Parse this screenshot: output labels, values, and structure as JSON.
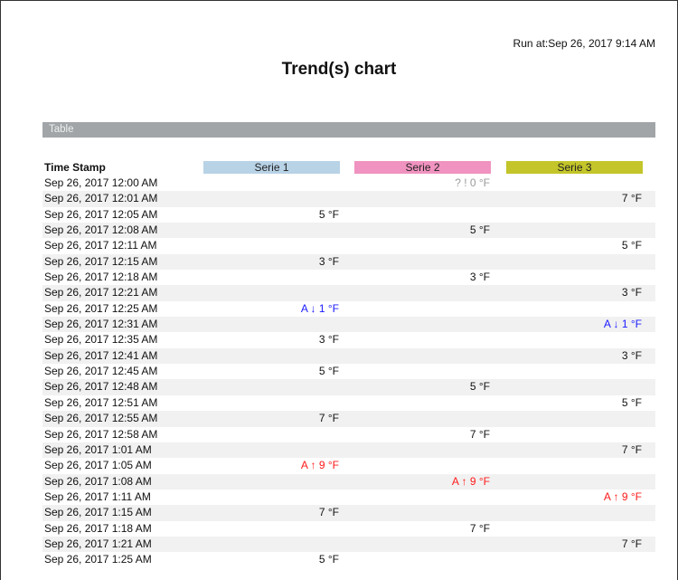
{
  "header": {
    "run_at": "Run at:Sep 26, 2017 9:14 AM",
    "title": "Trend(s) chart"
  },
  "section": {
    "label": "Table"
  },
  "table": {
    "columns": [
      {
        "label": "Time Stamp"
      },
      {
        "label": "Serie 1",
        "color": "#b8d2e6"
      },
      {
        "label": "Serie 2",
        "color": "#f093c0"
      },
      {
        "label": "Serie 3",
        "color": "#c3c52a"
      }
    ],
    "status_colors": {
      "normal": "#111111",
      "unknown": "#9a9a9a",
      "alarm_low": "#1a1aff",
      "alarm_high": "#ff1a1a"
    },
    "rows": [
      {
        "time": "Sep 26, 2017 12:00 AM",
        "serie": 2,
        "value": "? ! 0 °F",
        "status": "unknown"
      },
      {
        "time": "Sep 26, 2017 12:01 AM",
        "serie": 3,
        "value": "7 °F",
        "status": "normal"
      },
      {
        "time": "Sep 26, 2017 12:05 AM",
        "serie": 1,
        "value": "5 °F",
        "status": "normal"
      },
      {
        "time": "Sep 26, 2017 12:08 AM",
        "serie": 2,
        "value": "5 °F",
        "status": "normal"
      },
      {
        "time": "Sep 26, 2017 12:11 AM",
        "serie": 3,
        "value": "5 °F",
        "status": "normal"
      },
      {
        "time": "Sep 26, 2017 12:15 AM",
        "serie": 1,
        "value": "3 °F",
        "status": "normal"
      },
      {
        "time": "Sep 26, 2017 12:18 AM",
        "serie": 2,
        "value": "3 °F",
        "status": "normal"
      },
      {
        "time": "Sep 26, 2017 12:21 AM",
        "serie": 3,
        "value": "3 °F",
        "status": "normal"
      },
      {
        "time": "Sep 26, 2017 12:25 AM",
        "serie": 1,
        "value": "A ↓ 1 °F",
        "status": "alarm_low"
      },
      {
        "time": "Sep 26, 2017 12:31 AM",
        "serie": 3,
        "value": "A ↓ 1 °F",
        "status": "alarm_low"
      },
      {
        "time": "Sep 26, 2017 12:35 AM",
        "serie": 1,
        "value": "3 °F",
        "status": "normal"
      },
      {
        "time": "Sep 26, 2017 12:41 AM",
        "serie": 3,
        "value": "3 °F",
        "status": "normal"
      },
      {
        "time": "Sep 26, 2017 12:45 AM",
        "serie": 1,
        "value": "5 °F",
        "status": "normal"
      },
      {
        "time": "Sep 26, 2017 12:48 AM",
        "serie": 2,
        "value": "5 °F",
        "status": "normal"
      },
      {
        "time": "Sep 26, 2017 12:51 AM",
        "serie": 3,
        "value": "5 °F",
        "status": "normal"
      },
      {
        "time": "Sep 26, 2017 12:55 AM",
        "serie": 1,
        "value": "7 °F",
        "status": "normal"
      },
      {
        "time": "Sep 26, 2017 12:58 AM",
        "serie": 2,
        "value": "7 °F",
        "status": "normal"
      },
      {
        "time": "Sep 26, 2017 1:01 AM",
        "serie": 3,
        "value": "7 °F",
        "status": "normal"
      },
      {
        "time": "Sep 26, 2017 1:05 AM",
        "serie": 1,
        "value": "A ↑ 9 °F",
        "status": "alarm_high"
      },
      {
        "time": "Sep 26, 2017 1:08 AM",
        "serie": 2,
        "value": "A ↑ 9 °F",
        "status": "alarm_high"
      },
      {
        "time": "Sep 26, 2017 1:11 AM",
        "serie": 3,
        "value": "A ↑ 9 °F",
        "status": "alarm_high"
      },
      {
        "time": "Sep 26, 2017 1:15 AM",
        "serie": 1,
        "value": "7 °F",
        "status": "normal"
      },
      {
        "time": "Sep 26, 2017 1:18 AM",
        "serie": 2,
        "value": "7 °F",
        "status": "normal"
      },
      {
        "time": "Sep 26, 2017 1:21 AM",
        "serie": 3,
        "value": "7 °F",
        "status": "normal"
      },
      {
        "time": "Sep 26, 2017 1:25 AM",
        "serie": 1,
        "value": "5 °F",
        "status": "normal"
      }
    ]
  }
}
